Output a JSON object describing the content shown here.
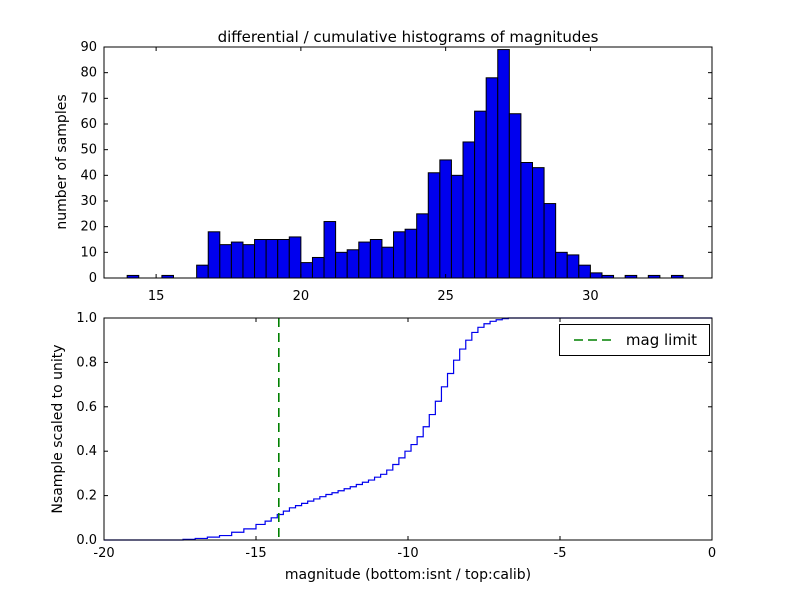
{
  "figure": {
    "background": "#ffffff"
  },
  "chart_data": [
    {
      "type": "bar",
      "subplot": "top",
      "title": "differential / cumulative histograms of magnitudes",
      "ylabel": "number of samples",
      "xlabel": "",
      "xlim": [
        13.2,
        34.2
      ],
      "ylim": [
        0,
        90
      ],
      "xticks": [
        15,
        20,
        25,
        30
      ],
      "yticks": [
        0,
        10,
        20,
        30,
        40,
        50,
        60,
        70,
        80,
        90
      ],
      "grid": false,
      "bar_color": "#0000ee",
      "bar_edge_color": "#000000",
      "bin_start": 13.2,
      "bin_width": 0.4,
      "counts": [
        0,
        0,
        1,
        0,
        0,
        1,
        0,
        0,
        5,
        18,
        13,
        14,
        13,
        15,
        15,
        15,
        16,
        6,
        8,
        22,
        10,
        11,
        14,
        15,
        12,
        18,
        19,
        25,
        41,
        46,
        40,
        53,
        65,
        78,
        89,
        64,
        45,
        43,
        29,
        10,
        9,
        5,
        2,
        1,
        0,
        1,
        0,
        1,
        0,
        1
      ]
    },
    {
      "type": "line",
      "subplot": "bottom",
      "title": "",
      "ylabel": "Nsample scaled to unity",
      "xlabel": "magnitude (bottom:isnt / top:calib)",
      "xlim": [
        -20,
        0
      ],
      "ylim": [
        0.0,
        1.0
      ],
      "xticks": [
        -20,
        -15,
        -10,
        -5,
        0
      ],
      "yticks": [
        0.0,
        0.2,
        0.4,
        0.6,
        0.8,
        1.0
      ],
      "grid": false,
      "line_color": "#0000ee",
      "step_style": true,
      "points": [
        [
          -20,
          0
        ],
        [
          -17.6,
          0
        ],
        [
          -17.4,
          0.003
        ],
        [
          -17.0,
          0.007
        ],
        [
          -16.6,
          0.013
        ],
        [
          -16.2,
          0.02
        ],
        [
          -15.8,
          0.035
        ],
        [
          -15.4,
          0.05
        ],
        [
          -15.0,
          0.07
        ],
        [
          -14.7,
          0.085
        ],
        [
          -14.5,
          0.1
        ],
        [
          -14.3,
          0.115
        ],
        [
          -14.1,
          0.13
        ],
        [
          -13.9,
          0.145
        ],
        [
          -13.7,
          0.155
        ],
        [
          -13.5,
          0.165
        ],
        [
          -13.3,
          0.175
        ],
        [
          -13.1,
          0.185
        ],
        [
          -12.9,
          0.195
        ],
        [
          -12.7,
          0.205
        ],
        [
          -12.5,
          0.213
        ],
        [
          -12.3,
          0.222
        ],
        [
          -12.1,
          0.231
        ],
        [
          -11.9,
          0.24
        ],
        [
          -11.7,
          0.25
        ],
        [
          -11.5,
          0.26
        ],
        [
          -11.3,
          0.27
        ],
        [
          -11.1,
          0.283
        ],
        [
          -10.9,
          0.296
        ],
        [
          -10.7,
          0.315
        ],
        [
          -10.5,
          0.34
        ],
        [
          -10.3,
          0.37
        ],
        [
          -10.1,
          0.4
        ],
        [
          -9.9,
          0.43
        ],
        [
          -9.7,
          0.465
        ],
        [
          -9.5,
          0.51
        ],
        [
          -9.3,
          0.565
        ],
        [
          -9.1,
          0.625
        ],
        [
          -8.9,
          0.69
        ],
        [
          -8.7,
          0.75
        ],
        [
          -8.5,
          0.81
        ],
        [
          -8.3,
          0.86
        ],
        [
          -8.1,
          0.9
        ],
        [
          -7.9,
          0.935
        ],
        [
          -7.7,
          0.958
        ],
        [
          -7.5,
          0.974
        ],
        [
          -7.3,
          0.985
        ],
        [
          -7.1,
          0.992
        ],
        [
          -6.9,
          0.997
        ],
        [
          -6.7,
          1.0
        ],
        [
          0,
          1.0
        ]
      ],
      "vline": {
        "x": -14.25,
        "color": "#008000",
        "style": "dashed",
        "label": "mag limit"
      },
      "legend": {
        "label": "mag limit",
        "position": "upper right",
        "line_color": "#008000",
        "line_style": "dashed"
      }
    }
  ]
}
